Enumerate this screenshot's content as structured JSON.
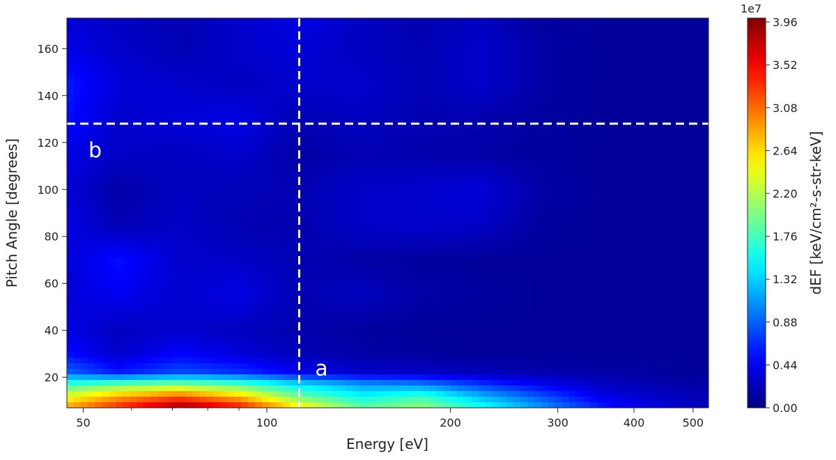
{
  "chart_data": {
    "type": "heatmap",
    "title": "",
    "xlabel": "Energy [eV]",
    "ylabel": "Pitch Angle [degrees]",
    "x_scale": "log",
    "xlim": [
      47,
      530
    ],
    "ylim": [
      7,
      173
    ],
    "x_ticks": [
      {
        "value": 50,
        "label": "50"
      },
      {
        "value": 100,
        "label": "100"
      },
      {
        "value": 200,
        "label": "200"
      },
      {
        "value": 300,
        "label": "300"
      },
      {
        "value": 400,
        "label": "400"
      },
      {
        "value": 500,
        "label": "500"
      }
    ],
    "y_ticks": [
      {
        "value": 20,
        "label": "20"
      },
      {
        "value": 40,
        "label": "40"
      },
      {
        "value": 60,
        "label": "60"
      },
      {
        "value": 80,
        "label": "80"
      },
      {
        "value": 100,
        "label": "100"
      },
      {
        "value": 120,
        "label": "120"
      },
      {
        "value": 140,
        "label": "140"
      },
      {
        "value": 160,
        "label": "160"
      }
    ],
    "grid": false,
    "colormap": "jet",
    "colorbar": {
      "label": "dEF [keV/cm²-s-str-keV]",
      "exponent": "1e7",
      "min": 0,
      "max": 4.0,
      "ticks": [
        {
          "value": 0.0,
          "label": "0.00"
        },
        {
          "value": 0.44,
          "label": "0.44"
        },
        {
          "value": 0.88,
          "label": "0.88"
        },
        {
          "value": 1.32,
          "label": "1.32"
        },
        {
          "value": 1.76,
          "label": "1.76"
        },
        {
          "value": 2.2,
          "label": "2.20"
        },
        {
          "value": 2.64,
          "label": "2.64"
        },
        {
          "value": 3.08,
          "label": "3.08"
        },
        {
          "value": 3.52,
          "label": "3.52"
        },
        {
          "value": 3.96,
          "label": "3.96"
        }
      ]
    },
    "energy_grid": [
      47,
      57,
      72,
      90,
      113,
      143,
      179,
      225,
      283,
      356,
      448,
      530
    ],
    "pitch_grid": [
      7,
      12,
      17,
      22,
      30,
      40,
      55,
      70,
      85,
      100,
      115,
      130,
      145,
      160,
      173
    ],
    "values": [
      [
        2.9,
        3.4,
        3.95,
        3.5,
        2.6,
        1.9,
        2.1,
        1.6,
        1.1,
        0.6,
        0.35,
        0.25
      ],
      [
        2.4,
        2.8,
        3.1,
        2.7,
        1.9,
        1.5,
        1.7,
        1.2,
        0.8,
        0.4,
        0.25,
        0.2
      ],
      [
        1.7,
        1.9,
        2.0,
        1.8,
        1.4,
        1.1,
        1.0,
        0.7,
        0.45,
        0.25,
        0.18,
        0.15
      ],
      [
        0.9,
        0.6,
        0.8,
        0.7,
        0.45,
        0.3,
        0.28,
        0.22,
        0.18,
        0.15,
        0.12,
        0.1
      ],
      [
        0.55,
        0.3,
        0.5,
        0.35,
        0.22,
        0.15,
        0.12,
        0.1,
        0.1,
        0.1,
        0.1,
        0.1
      ],
      [
        0.4,
        0.25,
        0.3,
        0.25,
        0.18,
        0.12,
        0.1,
        0.1,
        0.1,
        0.1,
        0.1,
        0.1
      ],
      [
        0.35,
        0.45,
        0.3,
        0.4,
        0.2,
        0.25,
        0.15,
        0.12,
        0.1,
        0.1,
        0.1,
        0.1
      ],
      [
        0.35,
        0.55,
        0.3,
        0.28,
        0.2,
        0.15,
        0.12,
        0.1,
        0.1,
        0.1,
        0.1,
        0.1
      ],
      [
        0.4,
        0.2,
        0.28,
        0.2,
        0.18,
        0.28,
        0.3,
        0.28,
        0.12,
        0.1,
        0.1,
        0.1
      ],
      [
        0.35,
        0.15,
        0.25,
        0.22,
        0.2,
        0.28,
        0.3,
        0.35,
        0.15,
        0.1,
        0.1,
        0.1
      ],
      [
        0.4,
        0.28,
        0.25,
        0.3,
        0.15,
        0.2,
        0.18,
        0.15,
        0.12,
        0.1,
        0.1,
        0.1
      ],
      [
        0.55,
        0.3,
        0.35,
        0.4,
        0.2,
        0.25,
        0.2,
        0.18,
        0.12,
        0.1,
        0.1,
        0.1
      ],
      [
        0.6,
        0.35,
        0.3,
        0.25,
        0.3,
        0.3,
        0.2,
        0.3,
        0.15,
        0.1,
        0.1,
        0.1
      ],
      [
        0.4,
        0.3,
        0.2,
        0.3,
        0.35,
        0.25,
        0.2,
        0.3,
        0.15,
        0.1,
        0.1,
        0.1
      ],
      [
        0.35,
        0.25,
        0.2,
        0.28,
        0.4,
        0.25,
        0.18,
        0.25,
        0.12,
        0.1,
        0.1,
        0.1
      ]
    ],
    "reference_lines": [
      {
        "orientation": "vertical",
        "x": 113,
        "style": "dashed",
        "color": "#ffffff",
        "label": "a",
        "label_at": {
          "x": 120,
          "y": 24
        }
      },
      {
        "orientation": "horizontal",
        "y": 128,
        "style": "dashed",
        "color": "#ffffff",
        "label": "b",
        "label_at": {
          "x": 51,
          "y": 117
        }
      }
    ]
  }
}
